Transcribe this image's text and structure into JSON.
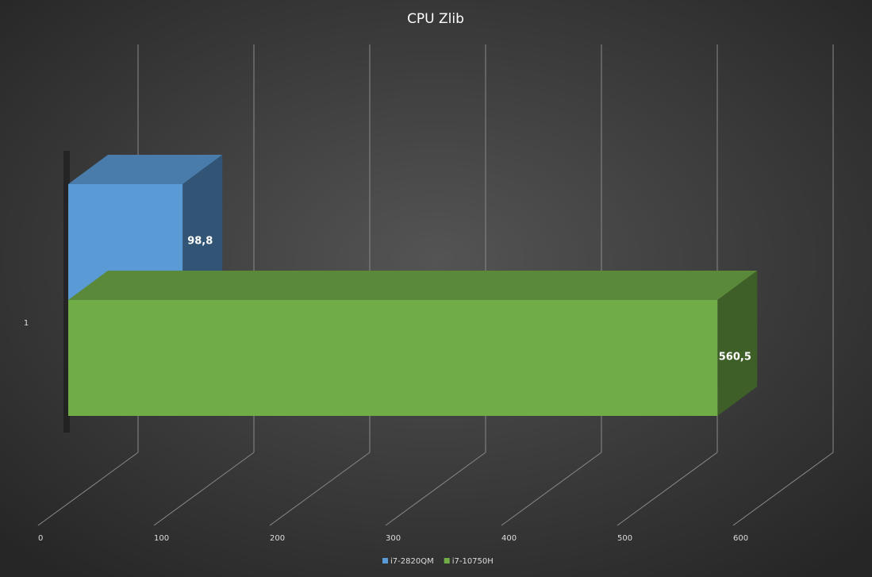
{
  "chart_data": {
    "type": "bar3d",
    "title": "CPU Zlib",
    "categories": [
      "1"
    ],
    "series": [
      {
        "name": "i7-2820QM",
        "color": "#5b9bd5",
        "values": [
          98.8
        ],
        "value_labels": [
          "98,8"
        ]
      },
      {
        "name": "i7-10750H",
        "color": "#70ad47",
        "values": [
          560.5
        ],
        "value_labels": [
          "560,5"
        ]
      }
    ],
    "xlim": [
      0,
      600
    ],
    "xticks": [
      0,
      100,
      200,
      300,
      400,
      500,
      600
    ],
    "grid": true,
    "legend": "bottom"
  }
}
